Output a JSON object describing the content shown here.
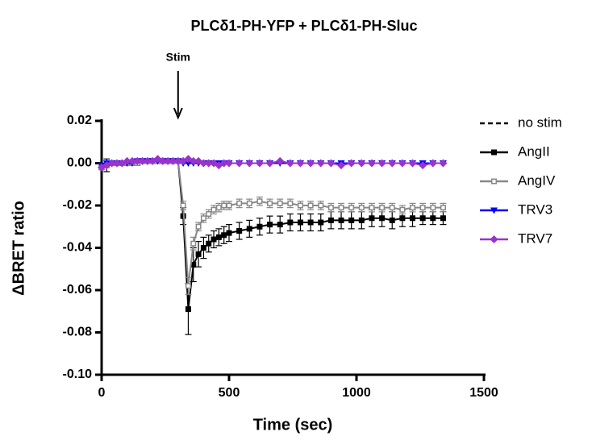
{
  "chart_data": {
    "type": "line",
    "title": "PLCδ1-PH-YFP + PLCδ1-PH-Sluc",
    "x_label": "Time (sec)",
    "y_label": "ΔBRET ratio",
    "annotation": {
      "text": "Stim",
      "x": 300
    },
    "x": [
      0,
      20,
      40,
      60,
      80,
      100,
      120,
      140,
      160,
      180,
      200,
      220,
      240,
      260,
      280,
      300,
      320,
      340,
      360,
      380,
      400,
      420,
      440,
      460,
      480,
      500,
      540,
      580,
      620,
      660,
      700,
      740,
      780,
      820,
      860,
      900,
      940,
      980,
      1020,
      1060,
      1100,
      1140,
      1180,
      1220,
      1260,
      1300,
      1340
    ],
    "series": [
      {
        "name": "no stim",
        "color": "#000000",
        "marker": "none",
        "dash": true,
        "values": [
          -0.002,
          -0.001,
          0,
          0,
          0,
          0.001,
          0,
          0,
          0.001,
          0.001,
          0.001,
          0.001,
          0.001,
          0.001,
          0.001,
          0.001,
          0.001,
          0.001,
          0.002,
          0.001,
          0.001,
          0.001,
          0,
          0,
          0,
          0,
          0,
          0,
          0,
          0,
          0,
          0,
          0,
          0,
          0,
          0,
          0,
          0,
          0,
          0,
          0,
          0,
          0,
          0,
          0,
          0,
          0
        ]
      },
      {
        "name": "AngII",
        "color": "#000000",
        "marker": "square",
        "values": [
          -0.002,
          -0.001,
          0,
          0,
          0,
          0,
          0,
          0,
          0.001,
          0.001,
          0.001,
          0.001,
          0.001,
          0.001,
          0.001,
          0.001,
          -0.025,
          -0.069,
          -0.048,
          -0.043,
          -0.04,
          -0.038,
          -0.036,
          -0.035,
          -0.034,
          -0.033,
          -0.032,
          -0.031,
          -0.03,
          -0.029,
          -0.029,
          -0.028,
          -0.028,
          -0.028,
          -0.028,
          -0.027,
          -0.027,
          -0.027,
          -0.027,
          -0.026,
          -0.026,
          -0.027,
          -0.026,
          -0.026,
          -0.026,
          -0.026,
          -0.026
        ],
        "errors": [
          0.001,
          0.003,
          0.001,
          0.001,
          0.001,
          0.001,
          0.001,
          0.001,
          0.001,
          0.001,
          0.001,
          0.001,
          0.001,
          0.001,
          0.001,
          0.001,
          0.004,
          0.012,
          0.008,
          0.006,
          0.005,
          0.004,
          0.004,
          0.004,
          0.004,
          0.004,
          0.004,
          0.004,
          0.004,
          0.004,
          0.004,
          0.004,
          0.004,
          0.004,
          0.004,
          0.004,
          0.004,
          0.004,
          0.004,
          0.004,
          0.004,
          0.004,
          0.004,
          0.004,
          0.003,
          0.003,
          0.003
        ]
      },
      {
        "name": "AngIV",
        "color": "#888888",
        "marker": "square-open",
        "values": [
          -0.002,
          -0.001,
          0,
          0,
          0,
          0,
          0,
          0,
          0.001,
          0.001,
          0.001,
          0.001,
          0.001,
          0.001,
          0.001,
          0.001,
          -0.02,
          -0.058,
          -0.038,
          -0.03,
          -0.026,
          -0.024,
          -0.022,
          -0.021,
          -0.02,
          -0.02,
          -0.019,
          -0.019,
          -0.018,
          -0.019,
          -0.019,
          -0.019,
          -0.02,
          -0.02,
          -0.02,
          -0.021,
          -0.021,
          -0.021,
          -0.021,
          -0.021,
          -0.021,
          -0.021,
          -0.022,
          -0.021,
          -0.021,
          -0.021,
          -0.021
        ],
        "errors": [
          0.001,
          0.001,
          0.001,
          0.001,
          0.001,
          0.001,
          0.001,
          0.001,
          0.001,
          0.001,
          0.001,
          0.001,
          0.001,
          0.001,
          0.001,
          0.001,
          0.002,
          0.004,
          0.003,
          0.002,
          0.002,
          0.002,
          0.002,
          0.002,
          0.002,
          0.002,
          0.002,
          0.002,
          0.002,
          0.002,
          0.002,
          0.002,
          0.002,
          0.002,
          0.002,
          0.002,
          0.002,
          0.002,
          0.002,
          0.002,
          0.002,
          0.002,
          0.002,
          0.002,
          0.002,
          0.002,
          0.002
        ]
      },
      {
        "name": "TRV3",
        "color": "#0000ff",
        "marker": "triangle-down",
        "values": [
          -0.001,
          0,
          0,
          0,
          0,
          0,
          0,
          0.001,
          0.001,
          0.001,
          0.001,
          0.001,
          0.001,
          0.001,
          0.001,
          0.001,
          0,
          0,
          0,
          0,
          0,
          0,
          0,
          0,
          0,
          0,
          0,
          0,
          0,
          0,
          0,
          0,
          0,
          0,
          0,
          0,
          0,
          0,
          0,
          0,
          0,
          0,
          0,
          0,
          0,
          0,
          0
        ]
      },
      {
        "name": "TRV7",
        "color": "#9933cc",
        "marker": "diamond",
        "values": [
          -0.002,
          -0.001,
          0,
          0,
          0,
          0.001,
          0.001,
          0.001,
          0.001,
          0.001,
          0.001,
          0.002,
          0.001,
          0.001,
          0.001,
          0.001,
          0.001,
          0.002,
          0.001,
          0.001,
          0,
          0,
          0,
          -0.001,
          0,
          0,
          0,
          0,
          0,
          0,
          0.001,
          0,
          0,
          0,
          0,
          0,
          -0.001,
          0,
          0,
          0,
          0,
          0,
          0,
          0,
          -0.001,
          0,
          0
        ]
      }
    ],
    "xlim": [
      0,
      1500
    ],
    "xticks": [
      0,
      500,
      1000,
      1500
    ],
    "ylim": [
      -0.1,
      0.02
    ],
    "yticks": [
      0.02,
      {
        "value": 0,
        "label": "0.00"
      },
      -0.02,
      -0.04,
      -0.06,
      -0.08,
      {
        "value": -0.1,
        "label": "-0.10"
      }
    ],
    "legend": "right"
  }
}
